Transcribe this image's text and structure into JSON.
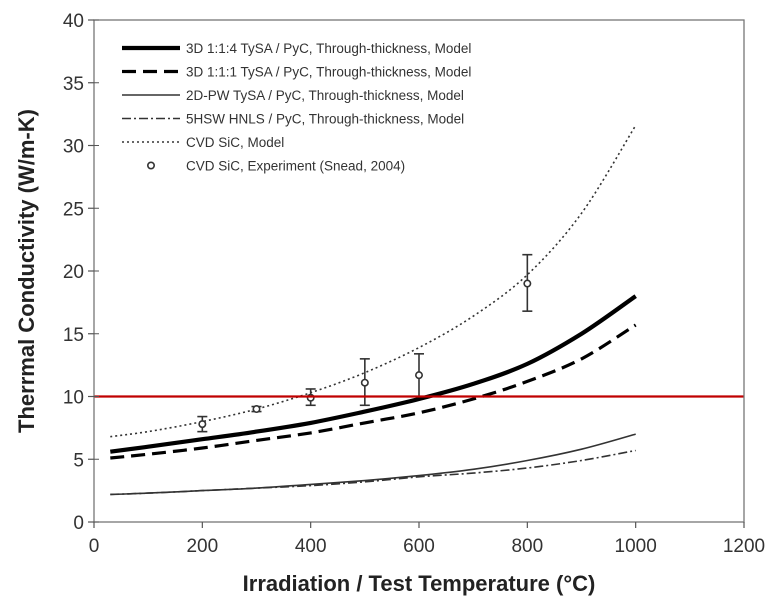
{
  "chart_data": {
    "type": "line",
    "xlabel": "Irradiation / Test Temperature (°C)",
    "ylabel": "Therrmal Conductivity (W/m-K)",
    "xlim": [
      0,
      1200
    ],
    "ylim": [
      0,
      40
    ],
    "xticks": [
      0,
      200,
      400,
      600,
      800,
      1000,
      1200
    ],
    "yticks": [
      0,
      5,
      10,
      15,
      20,
      25,
      30,
      35,
      40
    ],
    "grid": false,
    "legend_position": "top-left",
    "reference_line": {
      "y": 10,
      "color": "#c00000"
    },
    "series": [
      {
        "name": "3D 1:1:4 TySA / PyC, Through-thickness, Model",
        "style": "solid-thick",
        "color": "#000000",
        "x": [
          30,
          100,
          200,
          300,
          400,
          500,
          600,
          700,
          800,
          900,
          1000
        ],
        "y": [
          5.6,
          6.0,
          6.6,
          7.2,
          7.9,
          8.8,
          9.8,
          11.0,
          12.6,
          15.0,
          18.0
        ]
      },
      {
        "name": "3D 1:1:1 TySA / PyC, Through-thickness, Model",
        "style": "dashed-thick",
        "color": "#000000",
        "x": [
          30,
          100,
          200,
          300,
          400,
          500,
          600,
          700,
          800,
          900,
          1000
        ],
        "y": [
          5.1,
          5.4,
          5.9,
          6.5,
          7.1,
          7.9,
          8.7,
          9.8,
          11.2,
          13.0,
          15.7
        ]
      },
      {
        "name": "2D-PW TySA / PyC, Through-thickness, Model",
        "style": "solid-thin",
        "color": "#333333",
        "x": [
          30,
          100,
          200,
          300,
          400,
          500,
          600,
          700,
          800,
          900,
          1000
        ],
        "y": [
          2.2,
          2.3,
          2.5,
          2.7,
          3.0,
          3.3,
          3.7,
          4.2,
          4.9,
          5.8,
          7.0
        ]
      },
      {
        "name": "5HSW HNLS / PyC, Through-thickness, Model",
        "style": "dashdot",
        "color": "#333333",
        "x": [
          30,
          100,
          200,
          300,
          400,
          500,
          600,
          700,
          800,
          900,
          1000
        ],
        "y": [
          2.2,
          2.3,
          2.5,
          2.7,
          2.9,
          3.2,
          3.6,
          3.9,
          4.3,
          4.9,
          5.7
        ]
      },
      {
        "name": "CVD SiC, Model",
        "style": "dotted",
        "color": "#333333",
        "x": [
          30,
          100,
          200,
          300,
          400,
          500,
          600,
          700,
          800,
          900,
          1000
        ],
        "y": [
          6.8,
          7.2,
          8.0,
          9.0,
          10.3,
          11.9,
          13.9,
          16.4,
          19.7,
          24.6,
          31.6
        ]
      },
      {
        "name": "CVD SiC, Experiment (Snead, 2004)",
        "style": "markers-errorbars",
        "color": "#333333",
        "x": [
          200,
          300,
          400,
          500,
          600,
          800
        ],
        "y": [
          7.8,
          9.0,
          9.9,
          11.1,
          11.7,
          19.0
        ],
        "err_low": [
          7.2,
          8.8,
          9.3,
          9.3,
          10.0,
          16.8
        ],
        "err_high": [
          8.4,
          9.2,
          10.6,
          13.0,
          13.4,
          21.3
        ]
      }
    ]
  }
}
